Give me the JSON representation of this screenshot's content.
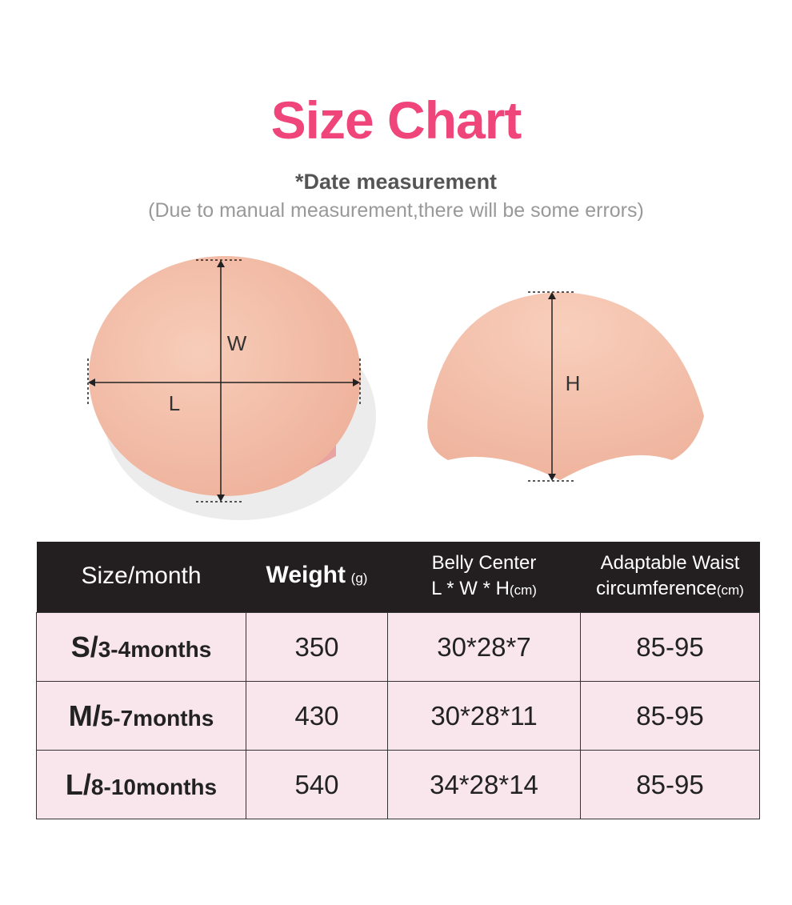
{
  "header": {
    "title": "Size Chart",
    "subtitle": "*Date measurement",
    "note": "(Due to manual measurement,there will be some errors)"
  },
  "diagram": {
    "left_labels": [
      "W",
      "L"
    ],
    "right_labels": [
      "H"
    ]
  },
  "table": {
    "header": [
      {
        "text": "Size/month"
      },
      {
        "text": "Weight",
        "unit": "(g)"
      },
      {
        "line1": "Belly Center",
        "text": "L * W * H",
        "unit": "(cm)"
      },
      {
        "line1": "Adaptable Waist",
        "text": "circumference",
        "unit": "(cm)"
      }
    ],
    "rows": [
      [
        {
          "size": "S/",
          "months": "3-4months"
        },
        "350",
        "30*28*7",
        "85-95"
      ],
      [
        {
          "size": "M/",
          "months": "5-7months"
        },
        "430",
        "30*28*11",
        "85-95"
      ],
      [
        {
          "size": "L/",
          "months": "8-10months"
        },
        "540",
        "34*28*14",
        "85-95"
      ]
    ]
  }
}
